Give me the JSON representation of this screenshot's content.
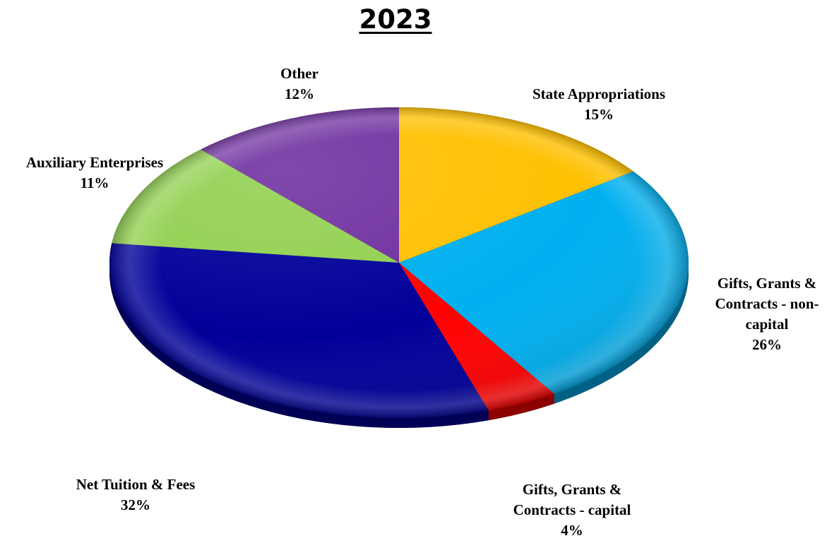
{
  "chart_data": {
    "type": "pie",
    "title": "2023",
    "slices": [
      {
        "name": "State Appropriations",
        "value": 15,
        "label": "15%",
        "color": "#FFC000"
      },
      {
        "name": "Gifts, Grants & Contracts - non-capital",
        "value": 26,
        "label": "26%",
        "color": "#00B0F0"
      },
      {
        "name": "Gifts, Grants & Contracts - capital",
        "value": 4,
        "label": "4%",
        "color": "#FF0000"
      },
      {
        "name": "Net Tuition & Fees",
        "value": 32,
        "label": "32%",
        "color": "#000099"
      },
      {
        "name": "Auxiliary Enterprises",
        "value": 11,
        "label": "11%",
        "color": "#92D050"
      },
      {
        "name": "Other",
        "value": 12,
        "label": "12%",
        "color": "#7030A0"
      }
    ],
    "labels": [
      {
        "lines": [
          "State Appropriations",
          "15%"
        ]
      },
      {
        "lines": [
          "Gifts, Grants &",
          "Contracts - non-",
          "capital",
          "26%"
        ]
      },
      {
        "lines": [
          "Gifts, Grants &",
          "Contracts - capital",
          "4%"
        ]
      },
      {
        "lines": [
          "Net Tuition & Fees",
          "32%"
        ]
      },
      {
        "lines": [
          "Auxiliary Enterprises",
          "11%"
        ]
      },
      {
        "lines": [
          "Other",
          "12%"
        ]
      }
    ]
  }
}
